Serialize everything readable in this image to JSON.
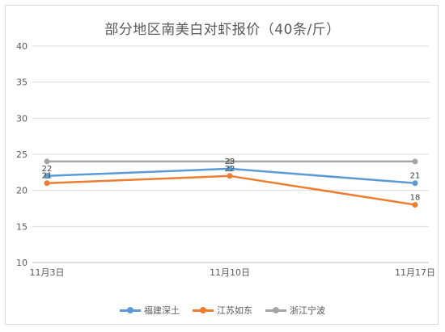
{
  "chart_data": {
    "type": "line",
    "title": "部分地区南美白对虾报价（40条/斤）",
    "categories": [
      "11月3日",
      "11月10日",
      "11月17日"
    ],
    "ylim": [
      10,
      40
    ],
    "yticks": [
      10,
      15,
      20,
      25,
      30,
      35,
      40
    ],
    "grid": true,
    "legend_position": "bottom",
    "series": [
      {
        "name": "福建深土",
        "values": [
          22,
          23,
          21
        ],
        "color": "#5b9bd5"
      },
      {
        "name": "江苏如东",
        "values": [
          21,
          22,
          18
        ],
        "color": "#ed7d31"
      },
      {
        "name": "浙江宁波",
        "values": [
          24,
          24,
          24
        ],
        "color": "#a5a5a5"
      }
    ],
    "data_labels": [
      {
        "series": 0,
        "index": 0,
        "text": "22",
        "pos": "above"
      },
      {
        "series": 1,
        "index": 0,
        "text": "21",
        "pos": "above"
      },
      {
        "series": 0,
        "index": 1,
        "text": "23",
        "pos": "above"
      },
      {
        "series": 1,
        "index": 1,
        "text": "22",
        "pos": "above"
      },
      {
        "series": 0,
        "index": 2,
        "text": "21",
        "pos": "above"
      },
      {
        "series": 1,
        "index": 2,
        "text": "18",
        "pos": "above"
      }
    ]
  }
}
